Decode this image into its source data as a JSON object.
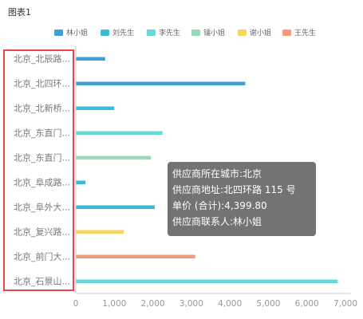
{
  "chart_title": "图表1",
  "chart_data": {
    "type": "bar",
    "orientation": "horizontal",
    "categories": [
      "北京_北辰路...",
      "北京_北四环...",
      "北京_北新桥...",
      "北京_东直门...",
      "北京_东直门...",
      "北京_阜成路...",
      "北京_阜外大...",
      "北京_复兴路...",
      "北京_前门大...",
      "北京_石景山..."
    ],
    "series": [
      {
        "name": "林小姐",
        "color": "#3f9fd3",
        "values": [
          760,
          4400,
          null,
          null,
          null,
          null,
          null,
          null,
          null,
          null
        ]
      },
      {
        "name": "刘先生",
        "color": "#39bbdb",
        "values": [
          null,
          null,
          1000,
          null,
          null,
          250,
          2050,
          null,
          null,
          null
        ]
      },
      {
        "name": "李先生",
        "color": "#68d6dd",
        "values": [
          null,
          null,
          null,
          2250,
          null,
          null,
          null,
          null,
          null,
          6800
        ]
      },
      {
        "name": "镭小姐",
        "color": "#9ad9b8",
        "values": [
          null,
          null,
          null,
          null,
          1950,
          null,
          null,
          null,
          null,
          null
        ]
      },
      {
        "name": "谢小姐",
        "color": "#f8d560",
        "values": [
          null,
          null,
          null,
          null,
          null,
          null,
          null,
          1250,
          null,
          null
        ]
      },
      {
        "name": "王先生",
        "color": "#f39a7e",
        "values": [
          null,
          null,
          null,
          null,
          null,
          null,
          null,
          null,
          3100,
          null
        ]
      }
    ],
    "xticks": [
      "0",
      "1,000",
      "2,000",
      "3,000",
      "4,000",
      "5,000",
      "6,000",
      "7,000"
    ],
    "xlim": [
      0,
      7000
    ],
    "legend_position": "top",
    "grid": false
  },
  "tooltip": {
    "lines": [
      "供应商所在城市:北京",
      "供应商地址:北四环路 115 号",
      "单价 (合计):4,399.80",
      "供应商联系人:林小姐"
    ]
  },
  "selection_color": "#e8474a"
}
